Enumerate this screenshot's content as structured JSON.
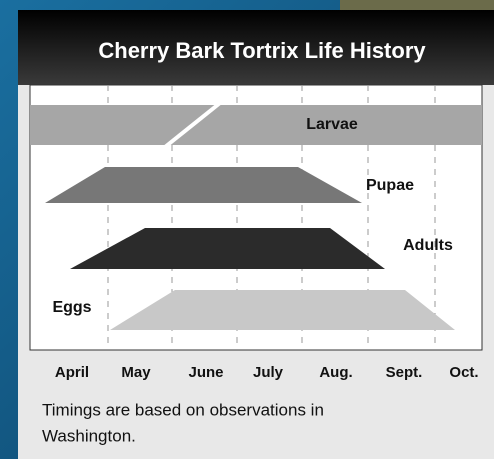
{
  "header": {
    "title": "Cherry Bark Tortrix Life History"
  },
  "stages": [
    {
      "label": "Larvae"
    },
    {
      "label": "Pupae"
    },
    {
      "label": "Adults"
    },
    {
      "label": "Eggs"
    }
  ],
  "months": [
    "April",
    "May",
    "June",
    "July",
    "Aug.",
    "Sept.",
    "Oct."
  ],
  "caption": [
    "Timings are based on observations in",
    "Washington."
  ]
}
